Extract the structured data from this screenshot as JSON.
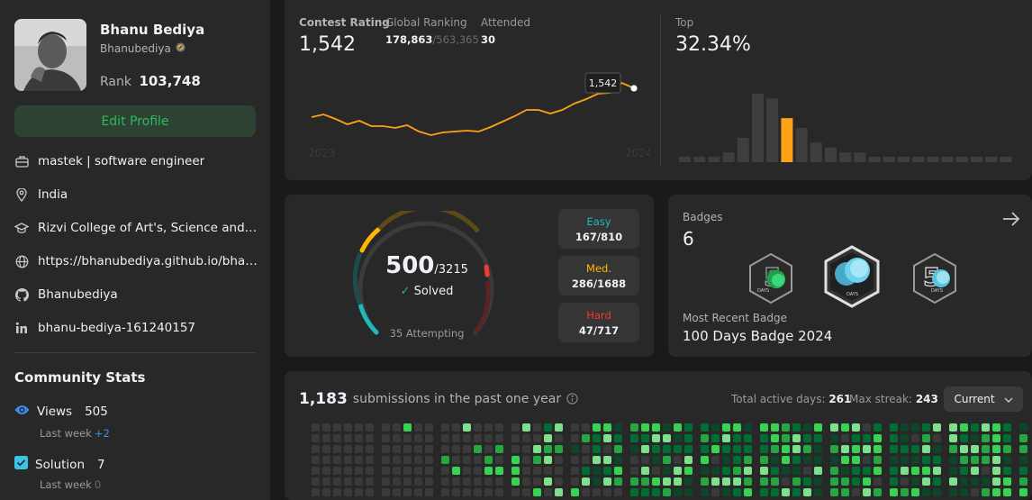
{
  "profile": {
    "name": "Bhanu Bediya",
    "username": "Bhanubediya",
    "rank_label": "Rank",
    "rank_value": "103,748",
    "edit_label": "Edit Profile",
    "info": [
      {
        "icon": "briefcase-icon",
        "text": "mastek | software engineer"
      },
      {
        "icon": "location-icon",
        "text": "India"
      },
      {
        "icon": "graduation-cap-icon",
        "text": "Rizvi College of Art's, Science and Co..."
      },
      {
        "icon": "globe-icon",
        "text": "https://bhanubediya.github.io/bhanu..."
      },
      {
        "icon": "github-icon",
        "text": "Bhanubediya"
      },
      {
        "icon": "linkedin-icon",
        "text": "bhanu-bediya-161240157"
      }
    ]
  },
  "community": {
    "title": "Community Stats",
    "views": {
      "label": "Views",
      "value": "505",
      "sub": "Last week",
      "delta": "+2"
    },
    "solution": {
      "label": "Solution",
      "value": "7",
      "sub": "Last week",
      "delta": "0"
    }
  },
  "contest": {
    "rating_label": "Contest Rating",
    "rating_value": "1,542",
    "global_label": "Global Ranking",
    "global_value": "178,863",
    "global_total": "/563,365",
    "attended_label": "Attended",
    "attended_value": "30",
    "tooltip": "1,542",
    "year_start": "2023",
    "year_end": "2024",
    "top_label": "Top",
    "top_value": "32.34%",
    "rating_history": [
      1504,
      1507,
      1502,
      1496,
      1500,
      1494,
      1494,
      1492,
      1495,
      1488,
      1484,
      1487,
      1488,
      1489,
      1488,
      1493,
      1499,
      1505,
      1512,
      1512,
      1508,
      1512,
      1519,
      1524,
      1530,
      1531,
      1542,
      1536
    ],
    "distribution": [
      1,
      1,
      1,
      2,
      5,
      14,
      13,
      9,
      7,
      4,
      3,
      2,
      2,
      1,
      1,
      1,
      1,
      1,
      1,
      1,
      1,
      1,
      1
    ],
    "highlight_index": 7
  },
  "solved": {
    "count": "500",
    "total": "/3215",
    "solved_label": "Solved",
    "attempting": "35 Attempting",
    "easy": {
      "label": "Easy",
      "value": "167/810",
      "color": "#1cbaba"
    },
    "medium": {
      "label": "Med.",
      "value": "286/1688",
      "color": "#ffb700"
    },
    "hard": {
      "label": "Hard",
      "value": "47/717",
      "color": "#f63737"
    }
  },
  "badges": {
    "label": "Badges",
    "count": "6",
    "recent_label": "Most Recent Badge",
    "recent_name": "100 Days Badge 2024"
  },
  "heatmap": {
    "count": "1,183",
    "text": "submissions in the past one year",
    "active_label": "Total active days:",
    "active_value": "261",
    "streak_label": "Max streak:",
    "streak_value": "243",
    "select_label": "Current"
  },
  "colors": {
    "accent": "#ffa116",
    "green": "#2cbb5d",
    "panel": "#282828",
    "page": "#1a1a1a"
  }
}
